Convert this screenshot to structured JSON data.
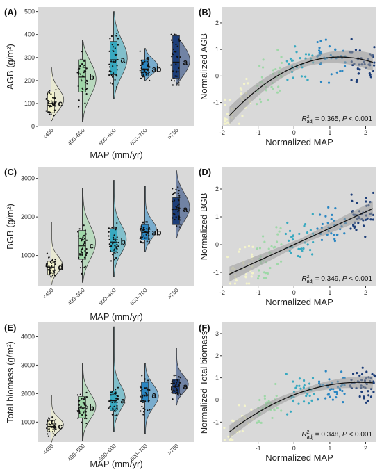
{
  "colors": {
    "panel_bg": "#d9d9d9",
    "groups": [
      "#f4f4cc",
      "#9fd8a8",
      "#38a9c0",
      "#2a86c2",
      "#1c3d78"
    ],
    "fit_line": "#111111",
    "ci_band": "#9a9a9a"
  },
  "chart_data": [
    {
      "panel": "(A)",
      "type": "violin-box",
      "categories": [
        "<400",
        "400–500",
        "500–600",
        "600–700",
        ">700"
      ],
      "xlabel": "MAP (mm/yr)",
      "ylabel": "AGB (g/m²)",
      "ylim": [
        0,
        520
      ],
      "yticks": [
        0,
        100,
        200,
        300,
        400,
        500
      ],
      "letters": [
        "c",
        "b",
        "a",
        "ab",
        "a"
      ],
      "summary": [
        {
          "min": 25,
          "q1": 60,
          "median": 100,
          "q3": 150,
          "max": 255
        },
        {
          "min": 20,
          "q1": 150,
          "median": 215,
          "q3": 290,
          "max": 375
        },
        {
          "min": 120,
          "q1": 225,
          "median": 290,
          "q3": 370,
          "max": 500
        },
        {
          "min": 200,
          "q1": 220,
          "median": 250,
          "q3": 290,
          "max": 340
        },
        {
          "min": 180,
          "q1": 210,
          "median": 280,
          "q3": 395,
          "max": 400
        }
      ]
    },
    {
      "panel": "(B)",
      "type": "scatter",
      "xlabel": "Normalized MAP",
      "ylabel": "Normalized AGB",
      "xlim": [
        -2,
        2.3
      ],
      "ylim": [
        -1.9,
        2.6
      ],
      "xticks": [
        -2,
        -1,
        0,
        1,
        2
      ],
      "yticks": [
        -1,
        0,
        1,
        2
      ],
      "fit": {
        "type": "quadratic",
        "a": -0.233,
        "b": 0.595,
        "c": 0.335,
        "se": 0.22
      },
      "r2adj": "0.365",
      "p_value": "< 0.001"
    },
    {
      "panel": "(C)",
      "type": "violin-box",
      "categories": [
        "<400",
        "400–500",
        "500–600",
        "600–700",
        ">700"
      ],
      "xlabel": "MAP (mm/yr)",
      "ylabel": "BGB (g/m²)",
      "ylim": [
        200,
        3300
      ],
      "yticks": [
        1000,
        2000,
        3000
      ],
      "letters": [
        "d",
        "c",
        "b",
        "ab",
        "a"
      ],
      "summary": [
        {
          "min": 250,
          "q1": 500,
          "median": 700,
          "q3": 850,
          "max": 1850
        },
        {
          "min": 300,
          "q1": 900,
          "median": 1250,
          "q3": 1650,
          "max": 2750
        },
        {
          "min": 450,
          "q1": 1100,
          "median": 1350,
          "q3": 1700,
          "max": 2950
        },
        {
          "min": 1100,
          "q1": 1400,
          "median": 1600,
          "q3": 1800,
          "max": 2800
        },
        {
          "min": 1450,
          "q1": 1800,
          "median": 2200,
          "q3": 2500,
          "max": 3200
        }
      ]
    },
    {
      "panel": "(D)",
      "type": "scatter",
      "xlabel": "Normalized MAP",
      "ylabel": "Normalized BGB",
      "xlim": [
        -2,
        2.3
      ],
      "ylim": [
        -1.5,
        2.8
      ],
      "xticks": [
        -2,
        -1,
        0,
        1,
        2
      ],
      "yticks": [
        -1,
        0,
        1,
        2
      ],
      "fit": {
        "type": "linear",
        "a": 0,
        "b": 0.59,
        "c": 0,
        "se": 0.18
      },
      "r2adj": "0.349",
      "p_value": "< 0.001"
    },
    {
      "panel": "(E)",
      "type": "violin-box",
      "categories": [
        "<400",
        "400–500",
        "500–600",
        "600–700",
        ">700"
      ],
      "xlabel": "MAP (mm/yr)",
      "ylabel": "Total biomass (g/m²)",
      "ylim": [
        300,
        4500
      ],
      "yticks": [
        1000,
        2000,
        3000,
        4000
      ],
      "letters": [
        "c",
        "b",
        "a",
        "a",
        "a"
      ],
      "summary": [
        {
          "min": 300,
          "q1": 650,
          "median": 850,
          "q3": 1050,
          "max": 1950
        },
        {
          "min": 350,
          "q1": 1150,
          "median": 1500,
          "q3": 1900,
          "max": 3050
        },
        {
          "min": 650,
          "q1": 1400,
          "median": 1750,
          "q3": 2100,
          "max": 4350
        },
        {
          "min": 600,
          "q1": 1700,
          "median": 1950,
          "q3": 2400,
          "max": 3050
        },
        {
          "min": 1600,
          "q1": 2000,
          "median": 2250,
          "q3": 2500,
          "max": 3600
        }
      ]
    },
    {
      "panel": "(F)",
      "type": "scatter",
      "xlabel": "Normalized MAP",
      "ylabel": "Normalized Total biomass",
      "xlim": [
        -2,
        2.3
      ],
      "ylim": [
        -1.9,
        3.5
      ],
      "xticks": [
        -1,
        0,
        1,
        2
      ],
      "yticks": [
        -1,
        0,
        1,
        2,
        3
      ],
      "fit": {
        "type": "quadratic",
        "a": -0.17,
        "b": 0.62,
        "c": 0.23,
        "se": 0.2
      },
      "r2adj": "0.348",
      "p_value": "< 0.001"
    }
  ]
}
